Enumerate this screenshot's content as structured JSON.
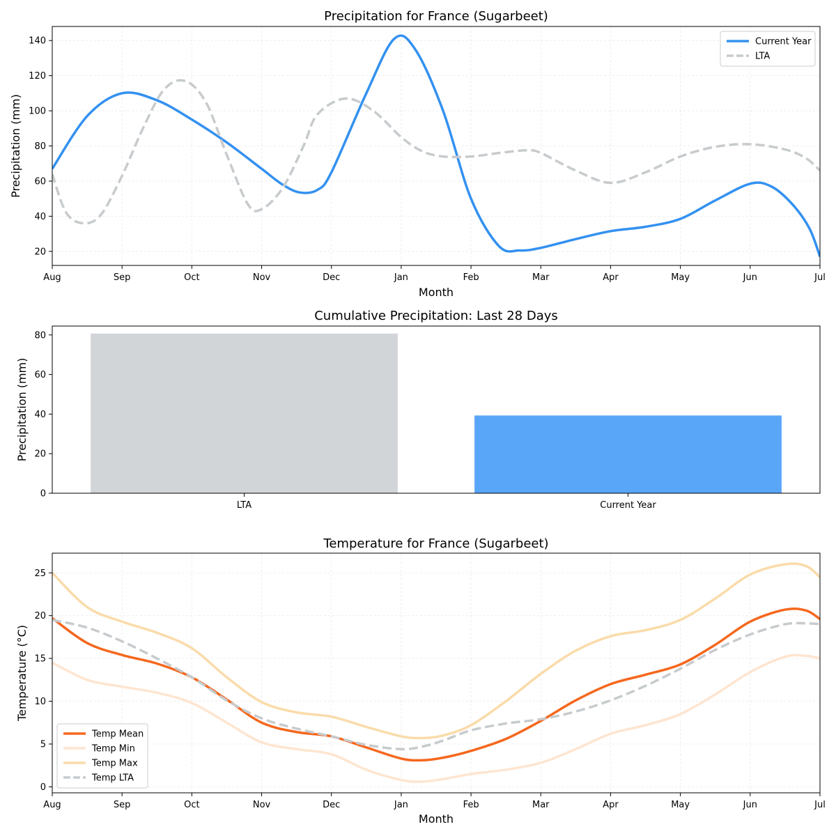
{
  "months": [
    "Aug",
    "Sep",
    "Oct",
    "Nov",
    "Dec",
    "Jan",
    "Feb",
    "Mar",
    "Apr",
    "May",
    "Jun",
    "Jul"
  ],
  "chart_data": [
    {
      "type": "line",
      "title": "Precipitation for France (Sugarbeet)",
      "xlabel": "Month",
      "ylabel": "Precipitation (mm)",
      "ylim": [
        12,
        148
      ],
      "yticks": [
        20,
        40,
        60,
        80,
        100,
        120,
        140
      ],
      "grid": true,
      "legend_position": "top-right",
      "series": [
        {
          "name": "Current Year",
          "color": "#3391f0",
          "style": "solid",
          "points": [
            [
              0,
              67
            ],
            [
              0.5,
              97
            ],
            [
              1,
              110
            ],
            [
              1.5,
              106
            ],
            [
              2,
              95
            ],
            [
              2.5,
              82
            ],
            [
              3,
              67
            ],
            [
              3.3,
              58
            ],
            [
              3.55,
              53.5
            ],
            [
              3.8,
              55
            ],
            [
              4,
              65
            ],
            [
              4.5,
              110
            ],
            [
              4.9,
              141
            ],
            [
              5.2,
              135
            ],
            [
              5.6,
              100
            ],
            [
              6,
              50
            ],
            [
              6.4,
              23
            ],
            [
              6.7,
              20.5
            ],
            [
              7,
              22
            ],
            [
              7.5,
              27
            ],
            [
              8,
              31.5
            ],
            [
              8.5,
              34
            ],
            [
              9,
              38.5
            ],
            [
              9.5,
              49
            ],
            [
              10,
              58.5
            ],
            [
              10.3,
              57
            ],
            [
              10.6,
              47
            ],
            [
              10.85,
              33
            ],
            [
              11,
              17
            ]
          ]
        },
        {
          "name": "LTA",
          "color": "#c7cbcd",
          "style": "dashed",
          "points": [
            [
              0,
              64
            ],
            [
              0.2,
              42
            ],
            [
              0.45,
              36
            ],
            [
              0.7,
              41
            ],
            [
              1,
              63
            ],
            [
              1.3,
              90
            ],
            [
              1.6,
              112
            ],
            [
              1.9,
              117
            ],
            [
              2.2,
              105
            ],
            [
              2.5,
              75
            ],
            [
              2.8,
              47
            ],
            [
              3,
              44
            ],
            [
              3.3,
              56
            ],
            [
              3.6,
              80
            ],
            [
              3.8,
              98
            ],
            [
              4.2,
              107
            ],
            [
              4.6,
              100
            ],
            [
              5,
              85
            ],
            [
              5.3,
              77
            ],
            [
              5.6,
              74
            ],
            [
              6,
              74
            ],
            [
              6.4,
              76
            ],
            [
              6.8,
              77.5
            ],
            [
              7,
              76
            ],
            [
              7.5,
              66
            ],
            [
              8,
              59
            ],
            [
              8.5,
              65
            ],
            [
              9,
              74
            ],
            [
              9.5,
              79.5
            ],
            [
              10,
              81
            ],
            [
              10.5,
              78
            ],
            [
              10.8,
              73
            ],
            [
              11,
              66
            ]
          ]
        }
      ]
    },
    {
      "type": "bar",
      "title": "Cumulative Precipitation: Last 28 Days",
      "xlabel": "",
      "ylabel": "Precipitation (mm)",
      "ylim": [
        0,
        84.5
      ],
      "yticks": [
        0,
        20,
        40,
        60,
        80
      ],
      "categories": [
        "LTA",
        "Current Year"
      ],
      "values": [
        80.7,
        39.3
      ],
      "colors": [
        "#d1d5d8",
        "#59a6f9"
      ]
    },
    {
      "type": "line",
      "title": "Temperature for France (Sugarbeet)",
      "xlabel": "Month",
      "ylabel": "Temperature (°C)",
      "ylim": [
        -0.7,
        27.3
      ],
      "yticks": [
        0,
        5,
        10,
        15,
        20,
        25
      ],
      "grid": true,
      "legend_position": "bottom-left",
      "series": [
        {
          "name": "Temp Mean",
          "color": "#f5671d",
          "style": "solid",
          "points": [
            [
              0,
              19.7
            ],
            [
              0.5,
              16.8
            ],
            [
              1,
              15.4
            ],
            [
              1.5,
              14.4
            ],
            [
              2,
              12.8
            ],
            [
              2.5,
              10.2
            ],
            [
              3,
              7.5
            ],
            [
              3.5,
              6.4
            ],
            [
              4,
              5.9
            ],
            [
              4.5,
              4.6
            ],
            [
              5,
              3.3
            ],
            [
              5.3,
              3.1
            ],
            [
              5.6,
              3.4
            ],
            [
              6,
              4.2
            ],
            [
              6.5,
              5.6
            ],
            [
              7,
              7.7
            ],
            [
              7.5,
              10.1
            ],
            [
              8,
              12
            ],
            [
              8.5,
              13.1
            ],
            [
              9,
              14.3
            ],
            [
              9.5,
              16.6
            ],
            [
              10,
              19.3
            ],
            [
              10.5,
              20.7
            ],
            [
              10.8,
              20.6
            ],
            [
              11,
              19.6
            ]
          ]
        },
        {
          "name": "Temp Min",
          "color": "#fee5d0",
          "style": "solid",
          "points": [
            [
              0,
              14.5
            ],
            [
              0.5,
              12.5
            ],
            [
              1,
              11.7
            ],
            [
              1.5,
              11
            ],
            [
              2,
              9.8
            ],
            [
              2.5,
              7.5
            ],
            [
              3,
              5.2
            ],
            [
              3.5,
              4.4
            ],
            [
              4,
              3.8
            ],
            [
              4.5,
              2
            ],
            [
              5,
              0.8
            ],
            [
              5.3,
              0.6
            ],
            [
              5.6,
              0.9
            ],
            [
              6,
              1.5
            ],
            [
              6.5,
              2
            ],
            [
              7,
              2.8
            ],
            [
              7.5,
              4.4
            ],
            [
              8,
              6.2
            ],
            [
              8.5,
              7.2
            ],
            [
              9,
              8.5
            ],
            [
              9.5,
              10.8
            ],
            [
              10,
              13.4
            ],
            [
              10.5,
              15.2
            ],
            [
              10.8,
              15.3
            ],
            [
              11,
              15
            ]
          ]
        },
        {
          "name": "Temp Max",
          "color": "#fadbaa",
          "style": "solid",
          "points": [
            [
              0,
              25
            ],
            [
              0.5,
              21
            ],
            [
              1,
              19.3
            ],
            [
              1.5,
              18
            ],
            [
              2,
              16.2
            ],
            [
              2.5,
              12.8
            ],
            [
              3,
              9.9
            ],
            [
              3.5,
              8.7
            ],
            [
              4,
              8.2
            ],
            [
              4.5,
              7
            ],
            [
              5,
              5.9
            ],
            [
              5.3,
              5.7
            ],
            [
              5.6,
              6
            ],
            [
              6,
              7.2
            ],
            [
              6.5,
              10
            ],
            [
              7,
              13.2
            ],
            [
              7.5,
              15.9
            ],
            [
              8,
              17.6
            ],
            [
              8.5,
              18.3
            ],
            [
              9,
              19.5
            ],
            [
              9.5,
              22
            ],
            [
              10,
              24.8
            ],
            [
              10.5,
              26
            ],
            [
              10.8,
              25.8
            ],
            [
              11,
              24.5
            ]
          ]
        },
        {
          "name": "Temp LTA",
          "color": "#c7cbcd",
          "style": "dashed",
          "points": [
            [
              0,
              19.5
            ],
            [
              0.5,
              18.6
            ],
            [
              1,
              17
            ],
            [
              1.5,
              15
            ],
            [
              2,
              12.8
            ],
            [
              2.5,
              10.1
            ],
            [
              3,
              8
            ],
            [
              3.5,
              6.8
            ],
            [
              4,
              5.9
            ],
            [
              4.5,
              4.9
            ],
            [
              5,
              4.4
            ],
            [
              5.3,
              4.7
            ],
            [
              5.6,
              5.4
            ],
            [
              6,
              6.6
            ],
            [
              6.5,
              7.4
            ],
            [
              7,
              7.9
            ],
            [
              7.5,
              8.8
            ],
            [
              8,
              10.1
            ],
            [
              8.5,
              11.8
            ],
            [
              9,
              13.8
            ],
            [
              9.5,
              16
            ],
            [
              10,
              17.8
            ],
            [
              10.5,
              19
            ],
            [
              10.8,
              19.1
            ],
            [
              11,
              19
            ]
          ]
        }
      ]
    }
  ]
}
